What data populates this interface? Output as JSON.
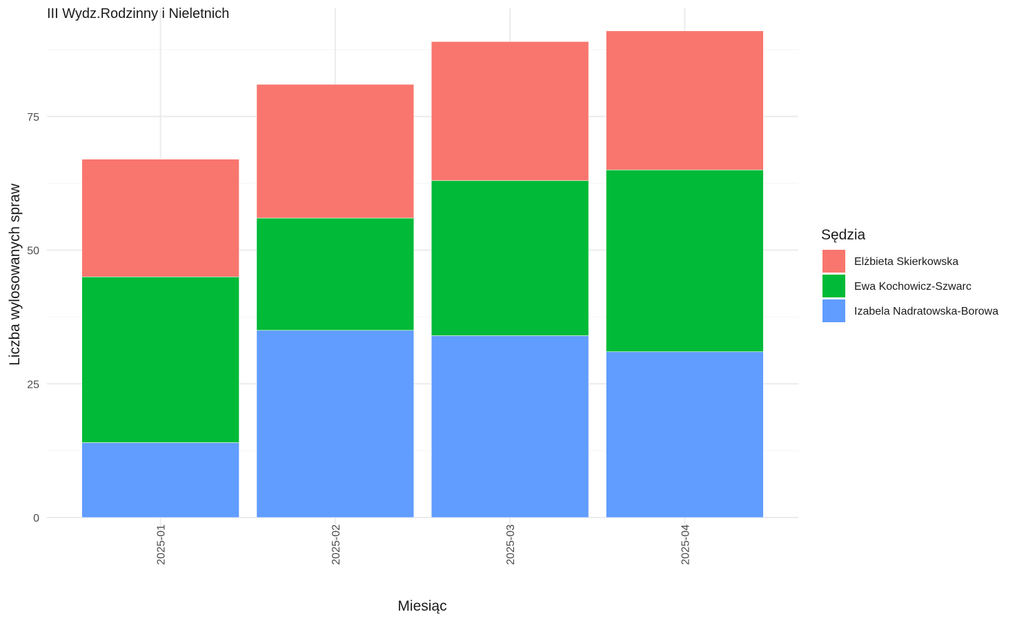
{
  "chart_data": {
    "type": "bar",
    "stacked": true,
    "title": "III Wydz.Rodzinny i Nieletnich",
    "xlabel": "Miesiąc",
    "ylabel": "Liczba wylosowanych spraw",
    "categories": [
      "2025-01",
      "2025-02",
      "2025-03",
      "2025-04"
    ],
    "ylim": [
      0,
      95
    ],
    "yticks": [
      0,
      25,
      50,
      75
    ],
    "grid": true,
    "legend": {
      "title": "Sędzia",
      "position": "right"
    },
    "series": [
      {
        "name": "Izabela Nadratowska-Borowa",
        "color": "#619CFF",
        "values": [
          14,
          35,
          34,
          31
        ]
      },
      {
        "name": "Ewa Kochowicz-Szwarc",
        "color": "#00BA38",
        "values": [
          31,
          21,
          29,
          34
        ]
      },
      {
        "name": "Elżbieta Skierkowska",
        "color": "#F8766D",
        "values": [
          22,
          25,
          26,
          26
        ]
      }
    ],
    "legend_order": [
      "Elżbieta Skierkowska",
      "Ewa Kochowicz-Szwarc",
      "Izabela Nadratowska-Borowa"
    ]
  }
}
